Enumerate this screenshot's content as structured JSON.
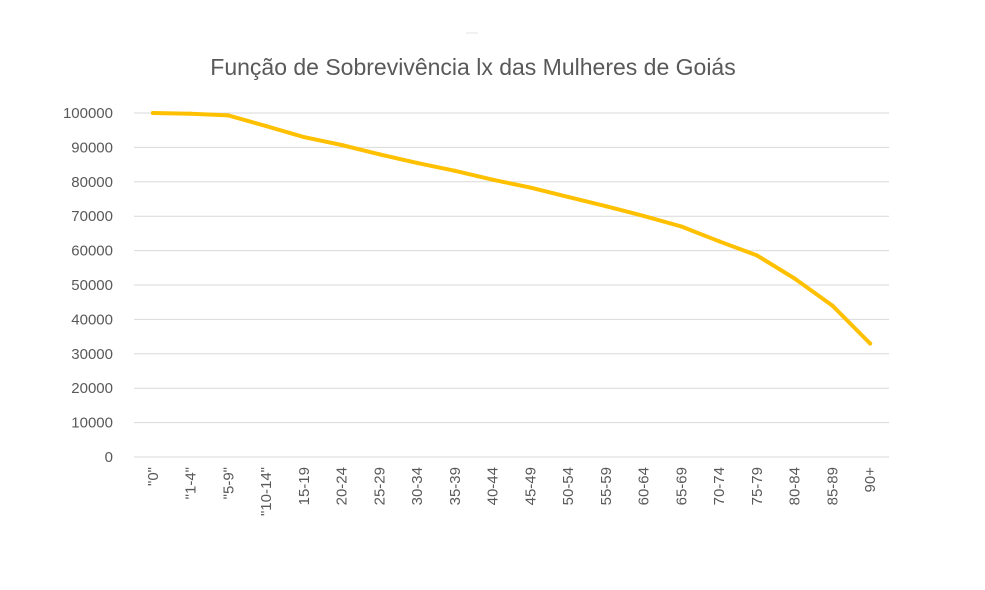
{
  "chart_data": {
    "type": "line",
    "title": "Função de Sobrevivência lx das Mulheres de Goiás",
    "xlabel": "",
    "ylabel": "",
    "categories": [
      "\"0\"",
      "\"1-4\"",
      "\"5-9\"",
      "\"10-14\"",
      "15-19",
      "20-24",
      "25-29",
      "30-34",
      "35-39",
      "40-44",
      "45-49",
      "50-54",
      "55-59",
      "60-64",
      "65-69",
      "70-74",
      "75-79",
      "80-84",
      "85-89",
      "90+"
    ],
    "series": [
      {
        "name": "",
        "color": "#ffc000",
        "values": [
          100000,
          99800,
          99300,
          96200,
          93000,
          90700,
          88000,
          85500,
          83200,
          80600,
          78300,
          75600,
          72900,
          70100,
          67000,
          62700,
          58600,
          51900,
          44000,
          33000
        ]
      }
    ],
    "ylim": [
      0,
      100000
    ],
    "yticks": [
      0,
      10000,
      20000,
      30000,
      40000,
      50000,
      60000,
      70000,
      80000,
      90000,
      100000
    ],
    "grid": true,
    "legend": "none"
  }
}
